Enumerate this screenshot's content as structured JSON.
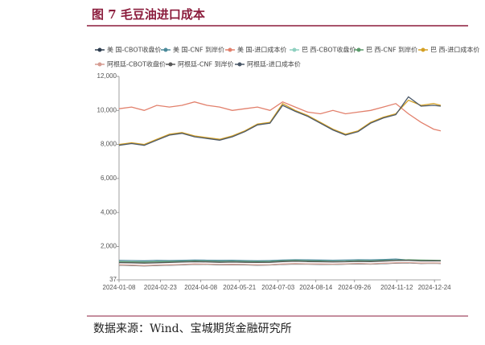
{
  "chart_data": {
    "type": "line",
    "title": "图 7  毛豆油进口成本",
    "source": "数据来源：Wind、宝城期货金融研究所",
    "x": [
      "2024-01-08",
      "2024-01-22",
      "2024-02-05",
      "2024-02-19",
      "2024-03-04",
      "2024-03-18",
      "2024-04-01",
      "2024-04-15",
      "2024-04-29",
      "2024-05-13",
      "2024-05-27",
      "2024-06-10",
      "2024-06-24",
      "2024-07-08",
      "2024-07-22",
      "2024-08-05",
      "2024-08-19",
      "2024-09-02",
      "2024-09-16",
      "2024-09-30",
      "2024-10-14",
      "2024-10-28",
      "2024-11-11",
      "2024-11-25",
      "2024-12-09",
      "2024-12-23",
      "2024-12-31"
    ],
    "xticks": [
      "2024-01-08",
      "2024-02-23",
      "2024-04-08",
      "2024-05-21",
      "2024-07-03",
      "2024-08-14",
      "2024-09-26",
      "2024-11-12",
      "2024-12-24"
    ],
    "ylim": [
      37,
      12000
    ],
    "yticks": [
      37,
      {
        "value": 2000,
        "label": "2,000"
      },
      {
        "value": 4000,
        "label": "4,000"
      },
      {
        "value": 6000,
        "label": "6,000"
      },
      {
        "value": 8000,
        "label": "8,000"
      },
      {
        "value": 10000,
        "label": "10,000"
      },
      {
        "value": 12000,
        "label": "12,000"
      }
    ],
    "series": [
      {
        "name": "美 国-CBOT收盘价",
        "color": "#2e3d4f",
        "values": [
          900,
          880,
          860,
          880,
          900,
          920,
          950,
          940,
          920,
          930,
          920,
          900,
          910,
          950,
          970,
          960,
          950,
          940,
          960,
          980,
          960,
          990,
          1020,
          1030,
          1000,
          1010,
          1000
        ]
      },
      {
        "name": "美 国-CNF 到岸价",
        "color": "#4b8a9a",
        "values": [
          1180,
          1170,
          1160,
          1180,
          1170,
          1180,
          1200,
          1190,
          1180,
          1190,
          1170,
          1160,
          1170,
          1200,
          1220,
          1210,
          1200,
          1190,
          1200,
          1220,
          1210,
          1230,
          1260,
          1200,
          1180,
          1170,
          1160
        ]
      },
      {
        "name": "美 国-进口成本价",
        "color": "#e2806c",
        "values": [
          10100,
          10200,
          10000,
          10300,
          10200,
          10300,
          10500,
          10300,
          10200,
          10000,
          10100,
          10200,
          10000,
          10500,
          10200,
          9900,
          9800,
          10000,
          9800,
          9900,
          10000,
          10200,
          10400,
          9800,
          9300,
          8900,
          8800
        ]
      },
      {
        "name": "巴 西-CBOT收盘价",
        "color": "#8fd0c0",
        "values": [
          910,
          890,
          870,
          890,
          910,
          930,
          960,
          950,
          930,
          940,
          930,
          910,
          920,
          960,
          980,
          970,
          960,
          950,
          970,
          990,
          970,
          1000,
          1030,
          1040,
          1010,
          1020,
          1010
        ]
      },
      {
        "name": "巴 西-CNF 到岸价",
        "color": "#5b9b6b",
        "values": [
          1100,
          1090,
          1080,
          1100,
          1110,
          1120,
          1140,
          1130,
          1110,
          1120,
          1110,
          1100,
          1110,
          1150,
          1170,
          1150,
          1140,
          1120,
          1130,
          1160,
          1150,
          1170,
          1190,
          1220,
          1200,
          1190,
          1180
        ]
      },
      {
        "name": "巴 西-进口成本价",
        "color": "#d4a024",
        "values": [
          8000,
          8100,
          8000,
          8300,
          8600,
          8700,
          8500,
          8400,
          8300,
          8500,
          8800,
          9200,
          9300,
          10400,
          10000,
          9700,
          9300,
          8900,
          8600,
          8800,
          9300,
          9600,
          9800,
          10600,
          10300,
          10400,
          10300
        ]
      },
      {
        "name": "阿根廷-CBOT收盘价",
        "color": "#d69c92",
        "values": [
          920,
          900,
          880,
          900,
          920,
          940,
          970,
          960,
          940,
          950,
          940,
          920,
          930,
          970,
          990,
          980,
          970,
          960,
          980,
          1000,
          980,
          1010,
          1040,
          1050,
          1020,
          1030,
          1020
        ]
      },
      {
        "name": "阿根廷-CNF 到岸价",
        "color": "#5a5a5a",
        "values": [
          1050,
          1040,
          1020,
          1040,
          1060,
          1080,
          1100,
          1090,
          1070,
          1080,
          1070,
          1060,
          1070,
          1110,
          1130,
          1110,
          1100,
          1090,
          1100,
          1120,
          1110,
          1140,
          1170,
          1180,
          1150,
          1160,
          1150
        ]
      },
      {
        "name": "阿根廷-进口成本价",
        "color": "#4a5868",
        "values": [
          7950,
          8050,
          7950,
          8250,
          8550,
          8650,
          8450,
          8350,
          8250,
          8450,
          8750,
          9150,
          9250,
          10300,
          9950,
          9650,
          9250,
          8850,
          8550,
          8750,
          9250,
          9550,
          9750,
          10800,
          10250,
          10300,
          10250
        ]
      }
    ]
  }
}
